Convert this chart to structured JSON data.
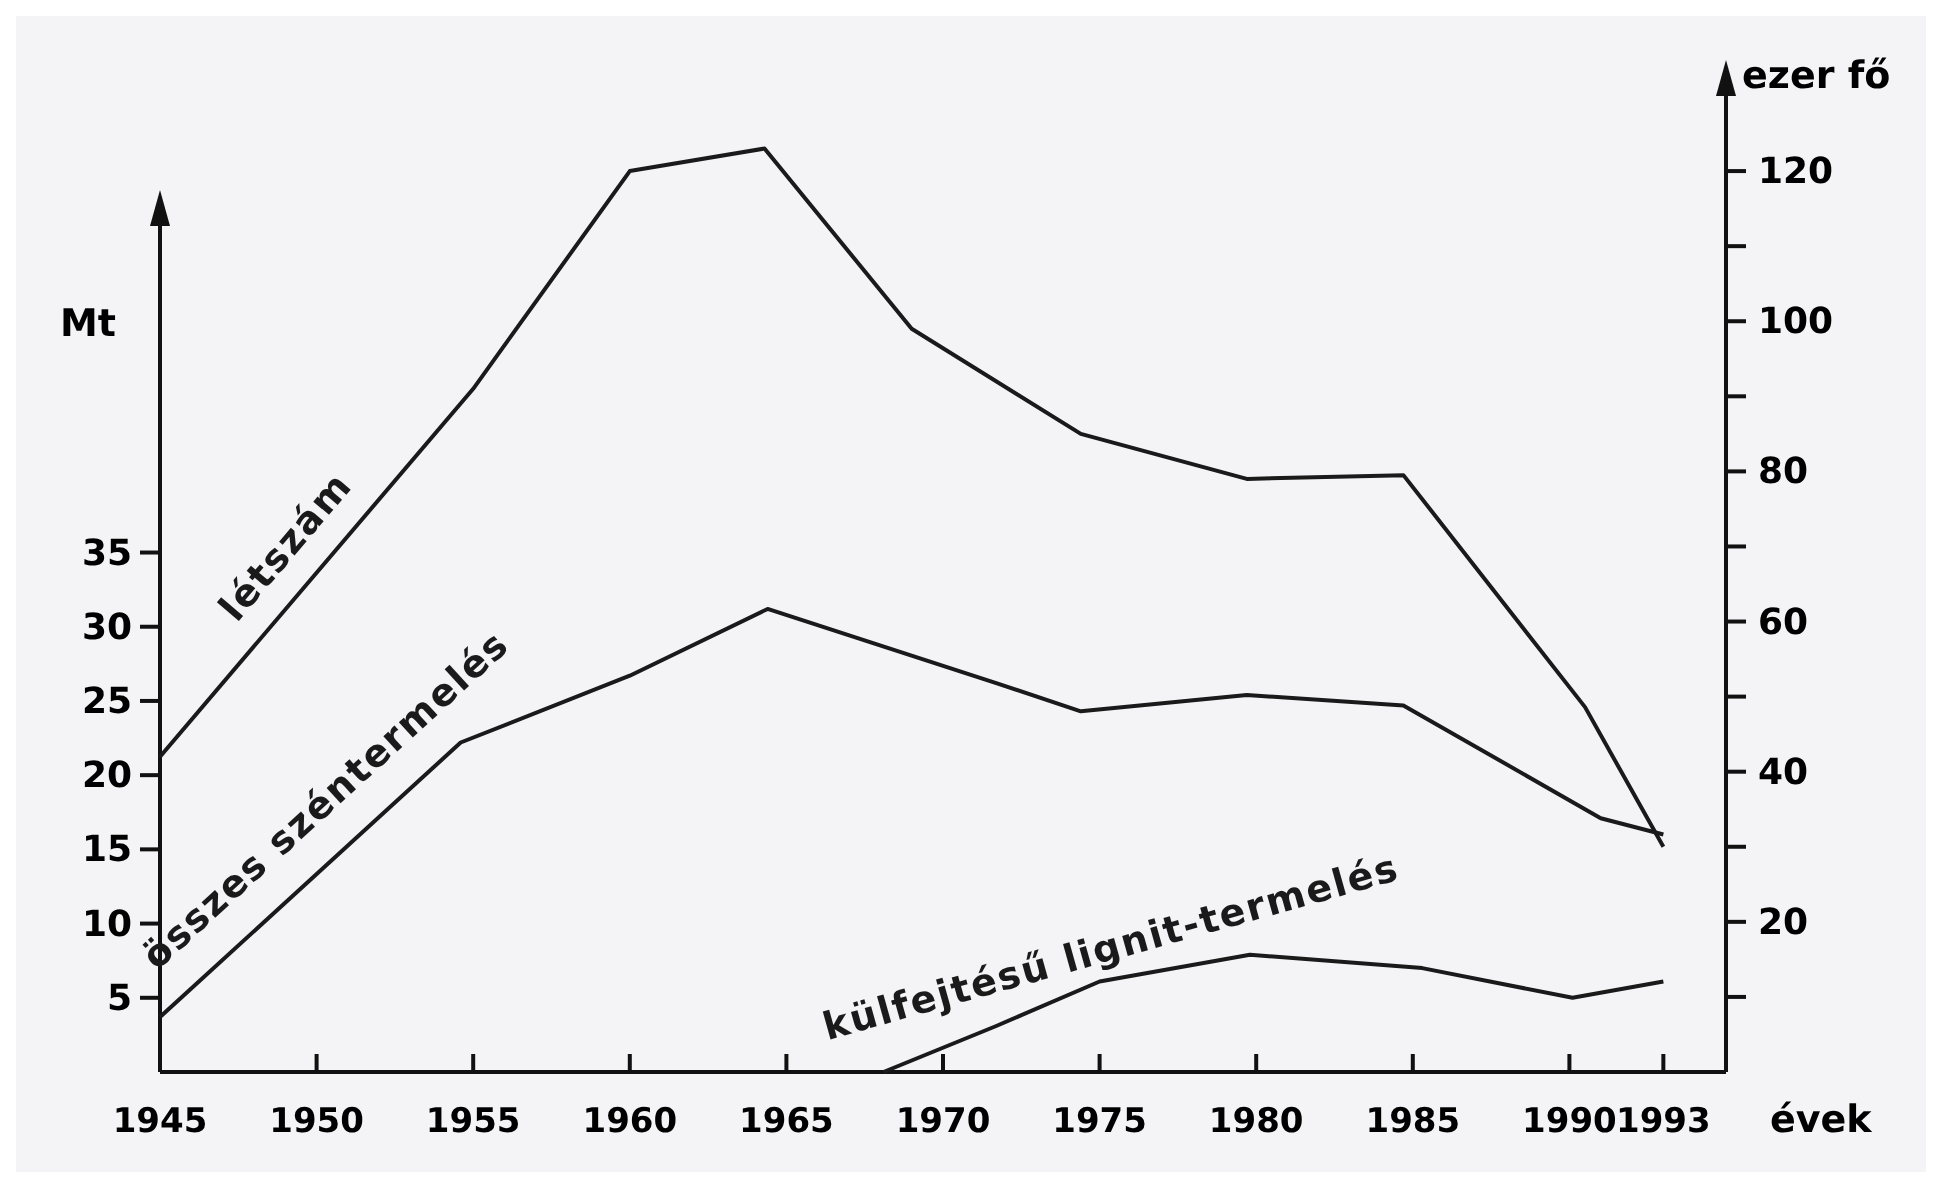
{
  "chart_data": {
    "type": "line",
    "xlabel": "évek",
    "ylabel": "Mt",
    "y2label": "ezer fő",
    "xlim": [
      1945,
      1995
    ],
    "xticks": [
      1945,
      1950,
      1955,
      1960,
      1965,
      1970,
      1975,
      1980,
      1985,
      1990,
      1993
    ],
    "ylim": [
      0,
      57
    ],
    "yticks": [
      {
        "value": 5,
        "label": "5"
      },
      10,
      15,
      20,
      25,
      30,
      35
    ],
    "y2lim": [
      0,
      130
    ],
    "y2ticks": [
      {
        "value": 10,
        "label": null
      },
      20,
      {
        "value": 30,
        "label": null
      },
      40,
      {
        "value": 50,
        "label": null
      },
      60,
      {
        "value": 70,
        "label": null
      },
      80,
      {
        "value": 90,
        "label": null
      },
      100,
      {
        "value": 110,
        "label": null
      },
      120
    ],
    "grid": false,
    "legend": false,
    "marker": "none",
    "line_style": "solid",
    "series": [
      {
        "name": "létszám",
        "color": "#1a1a1a",
        "axis": "y2",
        "x": [
          1945,
          1955,
          1960,
          1964.3,
          1969,
          1974.4,
          1979.7,
          1984.7,
          1990.5,
          1993
        ],
        "values": [
          42,
          91,
          120,
          123,
          99,
          85,
          79,
          79.5,
          48.6,
          30
        ]
      },
      {
        "name": "összes széntermelés",
        "color": "#1a1a1a",
        "x": [
          1945,
          1954.6,
          1960,
          1964.4,
          1971.7,
          1974.4,
          1979.7,
          1984.7,
          1991,
          1993
        ],
        "values": [
          3.7,
          22.2,
          26.7,
          31.2,
          26.2,
          24.3,
          25.4,
          24.7,
          17.1,
          16
        ]
      },
      {
        "name": "külfejtésű lignit-termelés",
        "color": "#1a1a1a",
        "x": [
          1968.1,
          1971.7,
          1975,
          1979.8,
          1985.3,
          1990.1,
          1993
        ],
        "values": [
          0,
          3.1,
          6.1,
          7.9,
          7,
          5,
          6.1
        ]
      }
    ]
  }
}
